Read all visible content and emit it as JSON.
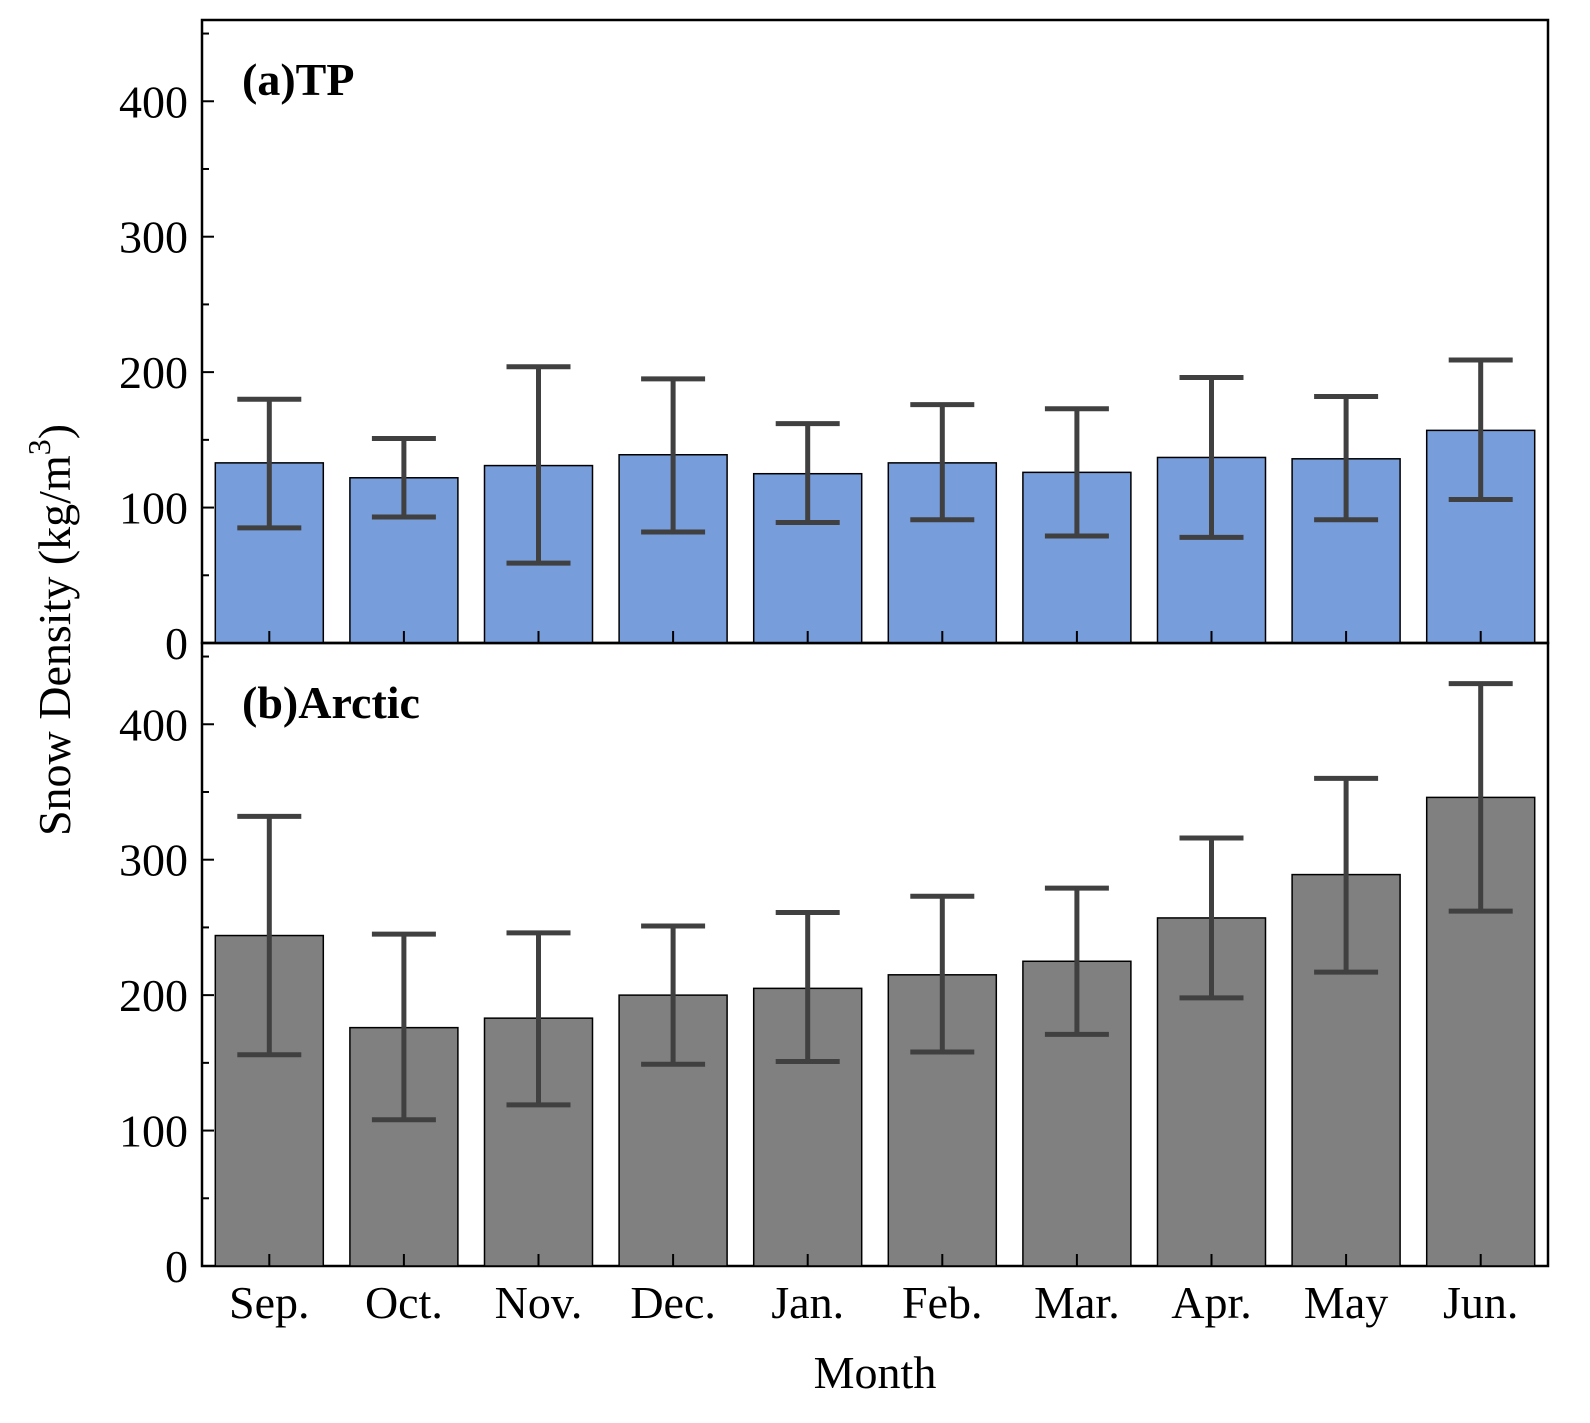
{
  "chart_data": {
    "type": "bar",
    "xlabel": "Month",
    "ylabel": "Snow Density (kg/m",
    "ylabel_superscript": "3",
    "ylabel_close": ")",
    "categories": [
      "Sep.",
      "Oct.",
      "Nov.",
      "Dec.",
      "Jan.",
      "Feb.",
      "Mar.",
      "Apr.",
      "May",
      "Jun."
    ],
    "ylim": [
      0,
      460
    ],
    "yticks": [
      0,
      100,
      200,
      300,
      400
    ],
    "panels": [
      {
        "label": "(a)TP",
        "color": "#779ddb",
        "values": [
          133,
          122,
          131,
          139,
          125,
          133,
          126,
          137,
          136,
          157
        ],
        "err_low": [
          85,
          93,
          59,
          82,
          89,
          91,
          79,
          78,
          91,
          106
        ],
        "err_high": [
          180,
          151,
          204,
          195,
          162,
          176,
          173,
          196,
          182,
          209
        ]
      },
      {
        "label": "(b)Arctic",
        "color": "#808080",
        "values": [
          244,
          176,
          183,
          200,
          205,
          215,
          225,
          257,
          289,
          346
        ],
        "err_low": [
          156,
          108,
          119,
          149,
          151,
          158,
          171,
          198,
          217,
          262
        ],
        "err_high": [
          332,
          245,
          246,
          251,
          261,
          273,
          279,
          316,
          360,
          430
        ]
      }
    ]
  }
}
